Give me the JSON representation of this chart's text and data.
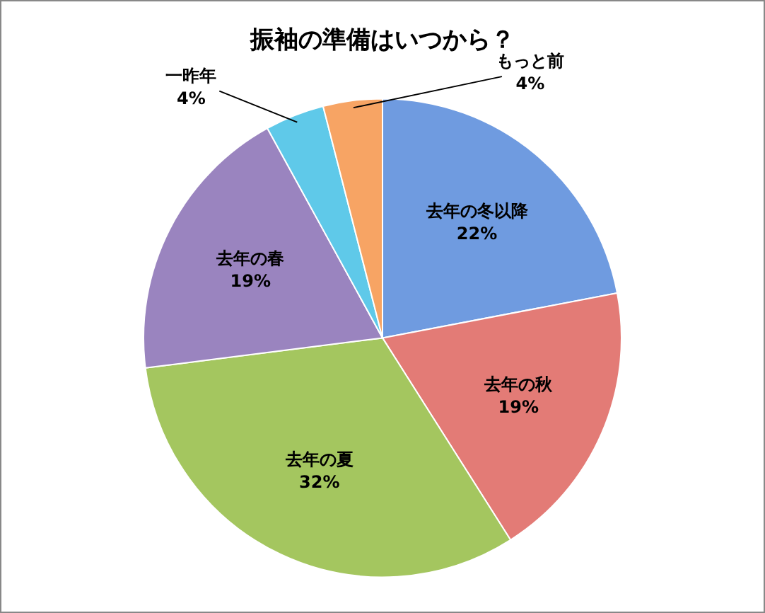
{
  "chart_data": {
    "type": "pie",
    "title": "振袖の準備はいつから？",
    "categories": [
      "去年の冬以降",
      "去年の秋",
      "去年の夏",
      "去年の春",
      "一昨年",
      "もっと前"
    ],
    "values": [
      22,
      19,
      32,
      19,
      4,
      4
    ],
    "value_labels": [
      "22%",
      "19%",
      "32%",
      "19%",
      "4%",
      "4%"
    ],
    "colors": [
      "#6f9be0",
      "#e37b76",
      "#a4c65f",
      "#9a84bf",
      "#5fc9e9",
      "#f7a464"
    ],
    "legend": false
  }
}
